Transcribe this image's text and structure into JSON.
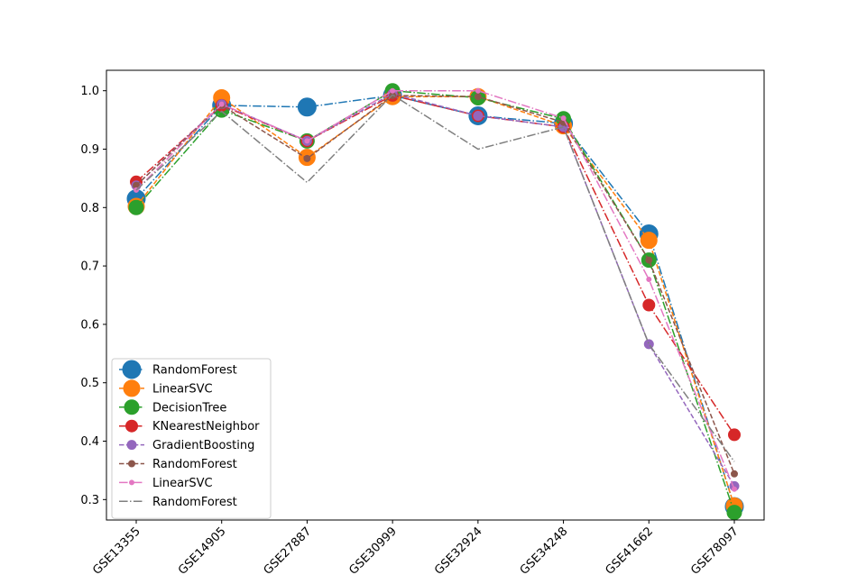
{
  "chart_data": {
    "type": "line",
    "title": "",
    "xlabel": "",
    "ylabel": "",
    "categories": [
      "GSE13355",
      "GSE14905",
      "GSE27887",
      "GSE30999",
      "GSE32924",
      "GSE34248",
      "GSE41662",
      "GSE78097"
    ],
    "ylim": [
      0.265,
      1.035
    ],
    "yticks": [
      0.3,
      0.4,
      0.5,
      0.6,
      0.7,
      0.8,
      0.9,
      1.0
    ],
    "ytick_labels": [
      "0.3",
      "0.4",
      "0.5",
      "0.6",
      "0.7",
      "0.8",
      "0.9",
      "1.0"
    ],
    "grid": false,
    "legend_position": "lower-left",
    "series": [
      {
        "name": "RandomForest",
        "color": "#1f77b4",
        "dash": "dashdot",
        "marker": "circle",
        "marker_size": "xlarge",
        "values": [
          0.815,
          0.975,
          0.972,
          0.992,
          0.957,
          0.944,
          0.755,
          0.288
        ]
      },
      {
        "name": "LinearSVC",
        "color": "#ff7f0e",
        "dash": "dashed",
        "marker": "circle",
        "marker_size": "large",
        "values": [
          0.802,
          0.988,
          0.886,
          0.99,
          0.99,
          0.94,
          0.744,
          0.289
        ]
      },
      {
        "name": "DecisionTree",
        "color": "#2ca02c",
        "dash": "dashdot",
        "marker": "circle",
        "marker_size": "medium",
        "values": [
          0.8,
          0.967,
          0.914,
          1.0,
          0.988,
          0.952,
          0.71,
          0.278
        ]
      },
      {
        "name": "KNearestNeighbor",
        "color": "#d62728",
        "dash": "dashdot",
        "marker": "circle",
        "marker_size": "small",
        "values": [
          0.844,
          0.975,
          0.914,
          0.992,
          0.957,
          0.938,
          0.633,
          0.411
        ]
      },
      {
        "name": "GradientBoosting",
        "color": "#9467bd",
        "dash": "dashed",
        "marker": "circle",
        "marker_size": "xsmall",
        "values": [
          0.838,
          0.977,
          0.914,
          0.995,
          0.957,
          0.938,
          0.566,
          0.323
        ]
      },
      {
        "name": "RandomForest",
        "color": "#8c564b",
        "dash": "dashed",
        "marker": "circle",
        "marker_size": "tiny",
        "values": [
          0.838,
          0.975,
          0.884,
          0.992,
          0.99,
          0.946,
          0.71,
          0.344
        ]
      },
      {
        "name": "LinearSVC",
        "color": "#e377c2",
        "dash": "dashdot",
        "marker": "circle",
        "marker_size": "micro",
        "values": [
          0.83,
          0.977,
          0.914,
          1.0,
          1.0,
          0.953,
          0.677,
          0.318
        ]
      },
      {
        "name": "RandomForest",
        "color": "#7f7f7f",
        "dash": "dashdot",
        "marker": "none",
        "marker_size": "none",
        "values": [
          0.83,
          0.965,
          0.843,
          0.993,
          0.9,
          0.938,
          0.566,
          0.365
        ]
      }
    ]
  }
}
